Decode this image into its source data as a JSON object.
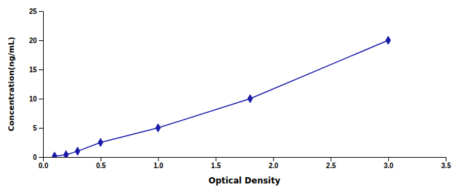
{
  "chart_data": {
    "type": "line",
    "x": [
      0.1,
      0.2,
      0.3,
      0.5,
      1.0,
      1.8,
      3.0
    ],
    "values": [
      0.16,
      0.4,
      1.0,
      2.5,
      5.0,
      10.0,
      20.0
    ],
    "color": "#1a1aaa",
    "marker": "diamond",
    "xlabel": "Optical Density",
    "ylabel": "Concentration(ng/mL)",
    "xlim": [
      0,
      3.5
    ],
    "ylim": [
      0,
      25
    ],
    "xticks": [
      {
        "value": 0,
        "label": "0.0"
      },
      0.5,
      {
        "value": 1.0,
        "label": "1.0"
      },
      1.5,
      {
        "value": 2.0,
        "label": "2.0"
      },
      2.5,
      {
        "value": 3.0,
        "label": "3.0"
      },
      3.5
    ],
    "yticks": [
      0,
      5,
      10,
      15,
      20,
      25
    ],
    "grid": false
  }
}
